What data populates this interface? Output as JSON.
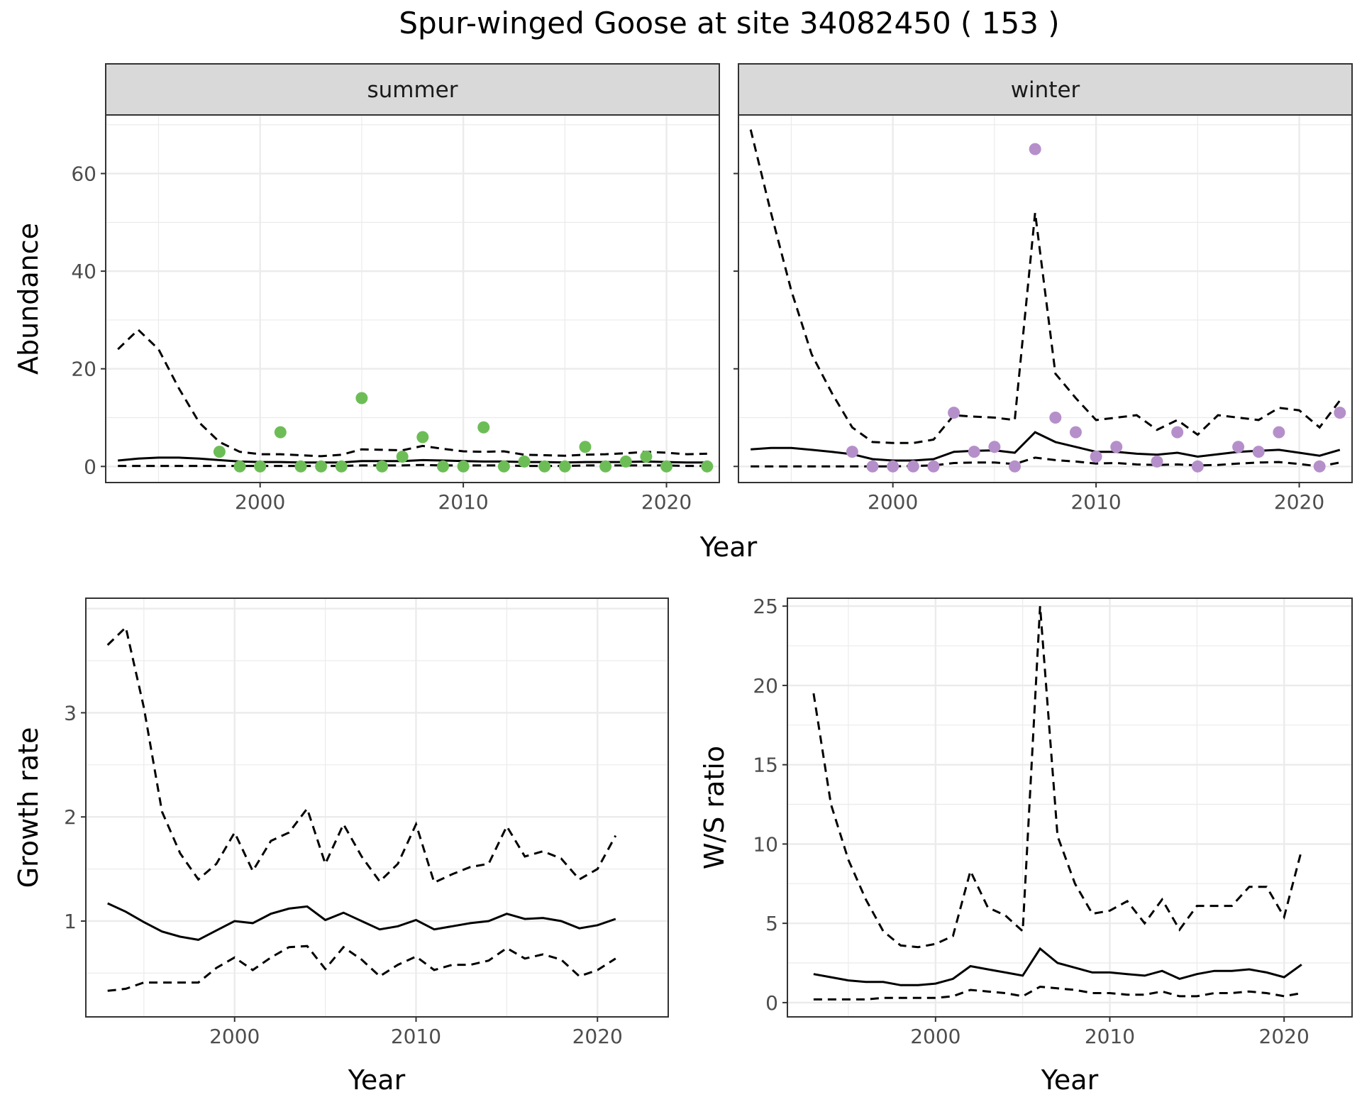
{
  "title": "Spur-winged Goose at site 34082450 ( 153 )",
  "colors": {
    "summer_points": "#6dbd57",
    "winter_points": "#b58fca",
    "lines": "#000000",
    "strip_bg": "#d9d9d9",
    "grid": "#ebebeb"
  },
  "chart_data": [
    {
      "id": "abundance",
      "type": "scatter+line",
      "ylabel": "Abundance",
      "xlabel": "Year",
      "xlim": [
        1992.4,
        2022.6
      ],
      "ylim": [
        -3.3,
        72
      ],
      "xticks": [
        2000,
        2010,
        2020
      ],
      "yticks": [
        0,
        20,
        40,
        60
      ],
      "facets": [
        {
          "name": "summer",
          "points_color": "#6dbd57",
          "points": {
            "x": [
              1998,
              1999,
              2000,
              2001,
              2002,
              2003,
              2004,
              2005,
              2006,
              2007,
              2008,
              2009,
              2010,
              2011,
              2012,
              2013,
              2014,
              2015,
              2016,
              2017,
              2018,
              2019,
              2020,
              2022
            ],
            "y": [
              3,
              0,
              0,
              7,
              0,
              0,
              0,
              14,
              0,
              2,
              6,
              0,
              0,
              8,
              0,
              1,
              0,
              0,
              4,
              0,
              1,
              2,
              0,
              0
            ]
          },
          "fit": {
            "x": [
              1993,
              1994,
              1995,
              1996,
              1997,
              1998,
              1999,
              2000,
              2001,
              2002,
              2003,
              2004,
              2005,
              2006,
              2007,
              2008,
              2009,
              2010,
              2011,
              2012,
              2013,
              2014,
              2015,
              2016,
              2017,
              2018,
              2019,
              2020,
              2021,
              2022
            ],
            "y": [
              1.2,
              1.6,
              1.8,
              1.8,
              1.6,
              1.3,
              1.0,
              0.9,
              0.9,
              0.8,
              0.8,
              0.8,
              1.1,
              1.1,
              1.1,
              1.3,
              1.2,
              1.1,
              1.0,
              1.0,
              0.9,
              0.9,
              0.8,
              0.9,
              0.9,
              0.9,
              1.0,
              0.9,
              0.8,
              0.8
            ]
          },
          "upper": {
            "x": [
              1993,
              1994,
              1995,
              1996,
              1997,
              1998,
              1999,
              2000,
              2001,
              2002,
              2003,
              2004,
              2005,
              2006,
              2007,
              2008,
              2009,
              2010,
              2011,
              2012,
              2013,
              2014,
              2015,
              2016,
              2017,
              2018,
              2019,
              2020,
              2021,
              2022
            ],
            "y": [
              24,
              28,
              24,
              16,
              9,
              5,
              3,
              2.5,
              2.5,
              2.3,
              2.1,
              2.4,
              3.5,
              3.4,
              3.3,
              4.2,
              3.6,
              3.1,
              3.0,
              3.1,
              2.4,
              2.3,
              2.2,
              2.4,
              2.5,
              2.7,
              3.0,
              2.8,
              2.5,
              2.6
            ]
          },
          "lower": {
            "x": [
              1993,
              1994,
              1995,
              1996,
              1997,
              1998,
              1999,
              2000,
              2001,
              2002,
              2003,
              2004,
              2005,
              2006,
              2007,
              2008,
              2009,
              2010,
              2011,
              2012,
              2013,
              2014,
              2015,
              2016,
              2017,
              2018,
              2019,
              2020,
              2021,
              2022
            ],
            "y": [
              0.1,
              0.1,
              0.1,
              0.1,
              0.1,
              0.1,
              0.1,
              0.1,
              0.1,
              0.1,
              0.1,
              0.1,
              0.2,
              0.2,
              0.2,
              0.3,
              0.2,
              0.2,
              0.2,
              0.2,
              0.1,
              0.1,
              0.1,
              0.2,
              0.2,
              0.2,
              0.2,
              0.2,
              0.1,
              0.1
            ]
          }
        },
        {
          "name": "winter",
          "points_color": "#b58fca",
          "points": {
            "x": [
              1998,
              1999,
              2000,
              2001,
              2002,
              2003,
              2004,
              2005,
              2006,
              2007,
              2008,
              2009,
              2010,
              2011,
              2013,
              2014,
              2015,
              2017,
              2018,
              2019,
              2021,
              2022
            ],
            "y": [
              3,
              0,
              0,
              0,
              0,
              11,
              3,
              4,
              0,
              65,
              10,
              7,
              2,
              4,
              1,
              7,
              0,
              4,
              3,
              7,
              0,
              11
            ]
          },
          "fit": {
            "x": [
              1993,
              1994,
              1995,
              1996,
              1997,
              1998,
              1999,
              2000,
              2001,
              2002,
              2003,
              2004,
              2005,
              2006,
              2007,
              2008,
              2009,
              2010,
              2011,
              2012,
              2013,
              2014,
              2015,
              2016,
              2017,
              2018,
              2019,
              2020,
              2021,
              2022
            ],
            "y": [
              3.5,
              3.8,
              3.8,
              3.4,
              3.0,
              2.5,
              1.5,
              1.2,
              1.2,
              1.5,
              3.0,
              3.2,
              3.3,
              2.8,
              7.0,
              5.0,
              4.0,
              3.0,
              3.0,
              2.6,
              2.4,
              2.8,
              2.0,
              2.5,
              3.0,
              3.2,
              3.4,
              2.8,
              2.2,
              3.4
            ]
          },
          "upper": {
            "x": [
              1993,
              1994,
              1995,
              1996,
              1997,
              1998,
              1999,
              2000,
              2001,
              2002,
              2003,
              2004,
              2005,
              2006,
              2007,
              2008,
              2009,
              2010,
              2011,
              2012,
              2013,
              2014,
              2015,
              2016,
              2017,
              2018,
              2019,
              2020,
              2021,
              2022
            ],
            "y": [
              69,
              52,
              36,
              23,
              15,
              8,
              5,
              4.8,
              4.8,
              5.5,
              10.5,
              10.2,
              10,
              9.5,
              52,
              19,
              14,
              9.5,
              10,
              10.5,
              7.5,
              9.5,
              6.5,
              10.5,
              10,
              9.5,
              12,
              11.5,
              8,
              13.5
            ]
          },
          "lower": {
            "x": [
              1993,
              1994,
              1995,
              1996,
              1997,
              1998,
              1999,
              2000,
              2001,
              2002,
              2003,
              2004,
              2005,
              2006,
              2007,
              2008,
              2009,
              2010,
              2011,
              2012,
              2013,
              2014,
              2015,
              2016,
              2017,
              2018,
              2019,
              2020,
              2021,
              2022
            ],
            "y": [
              0,
              0,
              0,
              0,
              0,
              0,
              0,
              0,
              0.1,
              0.2,
              0.7,
              0.8,
              0.8,
              0.5,
              1.8,
              1.3,
              1.0,
              0.6,
              0.7,
              0.4,
              0.3,
              0.4,
              0.2,
              0.3,
              0.6,
              0.8,
              0.9,
              0.5,
              0,
              0.8
            ]
          }
        }
      ]
    },
    {
      "id": "growth",
      "type": "line",
      "ylabel": "Growth rate",
      "xlabel": "Year",
      "xlim": [
        1991.8,
        2023.9
      ],
      "ylim": [
        0.08,
        4.1
      ],
      "xticks": [
        2000,
        2010,
        2020
      ],
      "yticks": [
        1,
        2,
        3
      ],
      "fit": {
        "x": [
          1993,
          1994,
          1995,
          1996,
          1997,
          1998,
          1999,
          2000,
          2001,
          2002,
          2003,
          2004,
          2005,
          2006,
          2007,
          2008,
          2009,
          2010,
          2011,
          2012,
          2013,
          2014,
          2015,
          2016,
          2017,
          2018,
          2019,
          2020,
          2021
        ],
        "y": [
          1.17,
          1.09,
          0.99,
          0.9,
          0.85,
          0.82,
          0.91,
          1.0,
          0.98,
          1.07,
          1.12,
          1.14,
          1.01,
          1.08,
          1.0,
          0.92,
          0.95,
          1.01,
          0.92,
          0.95,
          0.98,
          1.0,
          1.07,
          1.02,
          1.03,
          1.0,
          0.93,
          0.96,
          1.02
        ]
      },
      "upper": {
        "x": [
          1993,
          1994,
          1995,
          1996,
          1997,
          1998,
          1999,
          2000,
          2001,
          2002,
          2003,
          2004,
          2005,
          2006,
          2007,
          2008,
          2009,
          2010,
          2011,
          2012,
          2013,
          2014,
          2015,
          2016,
          2017,
          2018,
          2019,
          2020,
          2021
        ],
        "y": [
          3.65,
          3.82,
          3.05,
          2.05,
          1.65,
          1.4,
          1.55,
          1.85,
          1.48,
          1.77,
          1.85,
          2.08,
          1.55,
          1.93,
          1.62,
          1.38,
          1.55,
          1.93,
          1.37,
          1.45,
          1.52,
          1.55,
          1.91,
          1.62,
          1.67,
          1.6,
          1.4,
          1.5,
          1.82
        ]
      },
      "lower": {
        "x": [
          1993,
          1994,
          1995,
          1996,
          1997,
          1998,
          1999,
          2000,
          2001,
          2002,
          2003,
          2004,
          2005,
          2006,
          2007,
          2008,
          2009,
          2010,
          2011,
          2012,
          2013,
          2014,
          2015,
          2016,
          2017,
          2018,
          2019,
          2020,
          2021
        ],
        "y": [
          0.33,
          0.35,
          0.41,
          0.41,
          0.41,
          0.41,
          0.55,
          0.65,
          0.53,
          0.65,
          0.75,
          0.76,
          0.54,
          0.75,
          0.63,
          0.47,
          0.58,
          0.66,
          0.53,
          0.58,
          0.58,
          0.62,
          0.74,
          0.64,
          0.68,
          0.63,
          0.47,
          0.53,
          0.64
        ]
      }
    },
    {
      "id": "ws_ratio",
      "type": "line",
      "ylabel": "W/S ratio",
      "xlabel": "Year",
      "xlim": [
        1991.5,
        2023.9
      ],
      "ylim": [
        -0.9,
        25.5
      ],
      "xticks": [
        2000,
        2010,
        2020
      ],
      "yticks": [
        0,
        5,
        10,
        15,
        20,
        25
      ],
      "fit": {
        "x": [
          1993,
          1994,
          1995,
          1996,
          1997,
          1998,
          1999,
          2000,
          2001,
          2002,
          2003,
          2004,
          2005,
          2006,
          2007,
          2008,
          2009,
          2010,
          2011,
          2012,
          2013,
          2014,
          2015,
          2016,
          2017,
          2018,
          2019,
          2020,
          2021
        ],
        "y": [
          1.8,
          1.6,
          1.4,
          1.3,
          1.3,
          1.1,
          1.1,
          1.2,
          1.5,
          2.3,
          2.1,
          1.9,
          1.7,
          3.4,
          2.5,
          2.2,
          1.9,
          1.9,
          1.8,
          1.7,
          2.0,
          1.5,
          1.8,
          2.0,
          2.0,
          2.1,
          1.9,
          1.6,
          2.4
        ]
      },
      "upper": {
        "x": [
          1993,
          1994,
          1995,
          1996,
          1997,
          1998,
          1999,
          2000,
          2001,
          2002,
          2003,
          2004,
          2005,
          2006,
          2007,
          2008,
          2009,
          2010,
          2011,
          2012,
          2013,
          2014,
          2015,
          2016,
          2017,
          2018,
          2019,
          2020,
          2021
        ],
        "y": [
          19.5,
          12.5,
          9.0,
          6.5,
          4.5,
          3.6,
          3.5,
          3.7,
          4.2,
          8.3,
          6.0,
          5.5,
          4.5,
          25.0,
          10.5,
          7.5,
          5.6,
          5.8,
          6.4,
          5.0,
          6.5,
          4.6,
          6.1,
          6.1,
          6.1,
          7.3,
          7.3,
          5.4,
          9.6
        ]
      },
      "lower": {
        "x": [
          1993,
          1994,
          1995,
          1996,
          1997,
          1998,
          1999,
          2000,
          2001,
          2002,
          2003,
          2004,
          2005,
          2006,
          2007,
          2008,
          2009,
          2010,
          2011,
          2012,
          2013,
          2014,
          2015,
          2016,
          2017,
          2018,
          2019,
          2020,
          2021
        ],
        "y": [
          0.2,
          0.2,
          0.2,
          0.2,
          0.3,
          0.3,
          0.3,
          0.3,
          0.4,
          0.8,
          0.7,
          0.6,
          0.4,
          1.0,
          0.9,
          0.8,
          0.6,
          0.6,
          0.5,
          0.5,
          0.7,
          0.4,
          0.4,
          0.6,
          0.6,
          0.7,
          0.6,
          0.4,
          0.6
        ]
      }
    }
  ]
}
